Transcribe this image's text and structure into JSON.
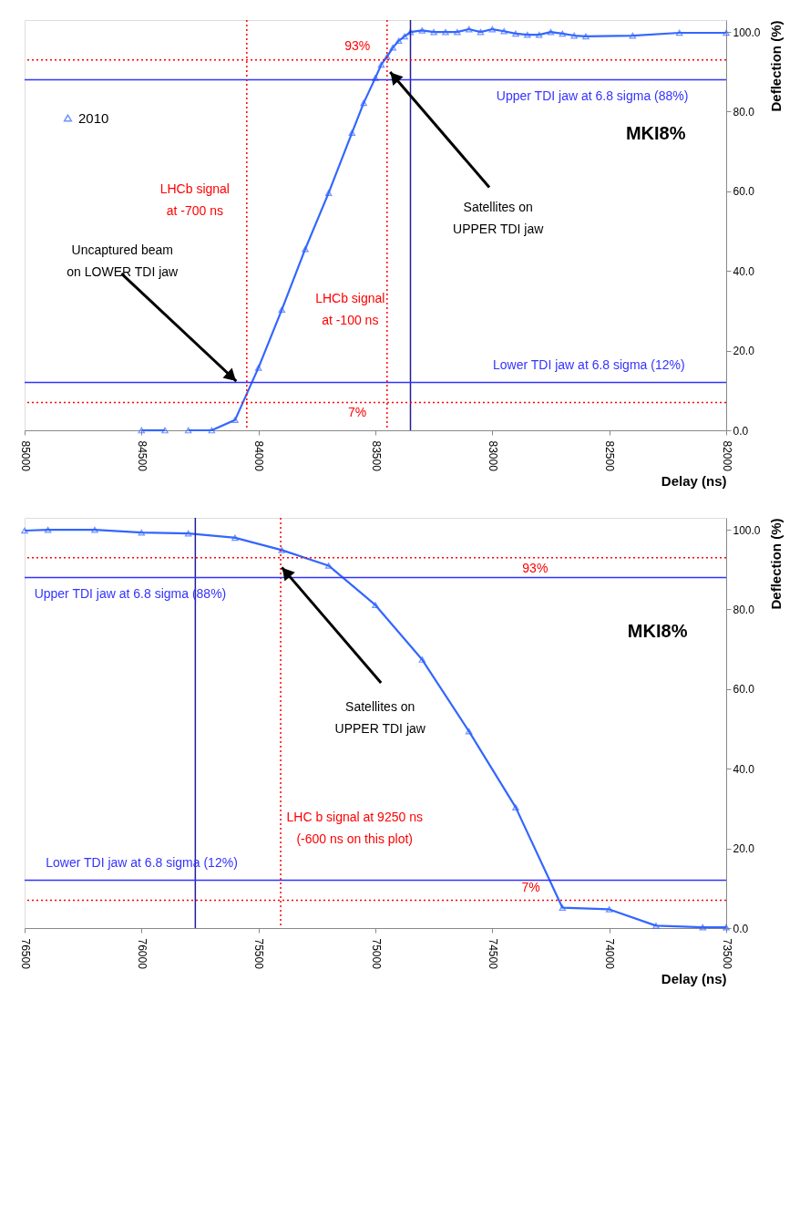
{
  "chart_data": [
    {
      "type": "line",
      "xlabel": "Delay (ns)",
      "ylabel": "Deflection (%)",
      "xlim": [
        85000,
        82000
      ],
      "xticks": [
        85000,
        84500,
        84000,
        83500,
        83000,
        82500,
        82000
      ],
      "ylim": [
        0,
        103
      ],
      "yticks": [
        {
          "value": 0,
          "label": "0.0"
        },
        {
          "value": 20,
          "label": "20.0"
        },
        {
          "value": 40,
          "label": "40.0"
        },
        {
          "value": 60,
          "label": "60.0"
        },
        {
          "value": 80,
          "label": "80.0"
        },
        {
          "value": 100,
          "label": "100.0"
        }
      ],
      "marker": "triangle",
      "line_style": "solid",
      "legend": "top left",
      "series": [
        {
          "name": "2010",
          "color": "#3366ff",
          "x": [
            84500,
            84400,
            84350,
            84300,
            84200,
            84100,
            84000,
            83900,
            83800,
            83700,
            83600,
            83550,
            83500,
            83475,
            83450,
            83425,
            83400,
            83375,
            83350,
            83300,
            83250,
            83200,
            83150,
            83100,
            83050,
            83000,
            82950,
            82900,
            82850,
            82800,
            82750,
            82700,
            82650,
            82600,
            82400,
            82200,
            82000
          ],
          "values": [
            0,
            0,
            null,
            0,
            0,
            2.6,
            15.7,
            30.3,
            45.5,
            59.6,
            74.7,
            82.2,
            88.5,
            91.8,
            93.8,
            96.1,
            97.8,
            98.9,
            100.0,
            100.4,
            100.0,
            100.0,
            100.0,
            100.7,
            100.0,
            100.7,
            100.2,
            99.6,
            99.3,
            99.3,
            100.0,
            99.6,
            99.1,
            98.9,
            99.1,
            99.8,
            99.8
          ]
        }
      ],
      "ref_lines": [
        {
          "axis": "x",
          "value": 84050,
          "label": "LHCb signal\nat -700 ns",
          "color": "#ff0000",
          "line_style": "dotted"
        },
        {
          "axis": "x",
          "value": 83450,
          "label": "LHCb signal\nat -100 ns",
          "color": "#ff0000",
          "line_style": "dotted"
        },
        {
          "axis": "x",
          "value": 83350,
          "color": "#1f1f99",
          "line_style": "solid"
        },
        {
          "axis": "y",
          "value": 93,
          "label": "93%",
          "color": "#ff0000",
          "line_style": "dotted"
        },
        {
          "axis": "y",
          "value": 7,
          "label": "7%",
          "color": "#ff0000",
          "line_style": "dotted"
        },
        {
          "axis": "y",
          "value": 88,
          "label": "Upper TDI jaw at 6.8 sigma (88%)",
          "color": "#3333ff",
          "line_style": "solid"
        },
        {
          "axis": "y",
          "value": 12,
          "label": "Lower TDI jaw at 6.8 sigma (12%)",
          "color": "#3333ff",
          "line_style": "solid"
        }
      ],
      "annotations": [
        {
          "text": "Uncaptured beam\non LOWER TDI jaw",
          "x": 84089,
          "y": 12
        },
        {
          "text": "Satellites on\nUPPER TDI jaw",
          "x": 83442,
          "y": 90.3
        },
        "MKI8%"
      ]
    },
    {
      "type": "line",
      "xlabel": "Delay (ns)",
      "ylabel": "Deflection (%)",
      "xlim": [
        76500,
        73500
      ],
      "xticks": [
        76500,
        76000,
        75500,
        75000,
        74500,
        74000,
        73500
      ],
      "ylim": [
        0,
        103
      ],
      "yticks": [
        {
          "value": 0,
          "label": "0.0"
        },
        {
          "value": 20,
          "label": "20.0"
        },
        {
          "value": 40,
          "label": "40.0"
        },
        {
          "value": 60,
          "label": "60.0"
        },
        {
          "value": 80,
          "label": "80.0"
        },
        {
          "value": 100,
          "label": "100.0"
        }
      ],
      "marker": "triangle",
      "line_style": "solid",
      "series": [
        {
          "color": "#3366ff",
          "x": [
            76500,
            76400,
            76200,
            76000,
            75800,
            75600,
            75400,
            75200,
            75000,
            74800,
            74600,
            74400,
            74200,
            74000,
            73800,
            73600,
            73500
          ],
          "values": [
            99.8,
            100.0,
            100.0,
            99.3,
            99.1,
            98.0,
            94.9,
            91.0,
            81.1,
            67.4,
            49.4,
            30.3,
            5.1,
            4.7,
            0.6,
            0.2,
            0.2
          ]
        }
      ],
      "ref_lines": [
        {
          "axis": "x",
          "value": 75770,
          "color": "#1f1f99",
          "line_style": "solid"
        },
        {
          "axis": "x",
          "value": 75405,
          "label": "LHC b signal at 9250 ns\n(-600 ns on this plot)",
          "color": "#ff0000",
          "line_style": "dotted"
        },
        {
          "axis": "y",
          "value": 93,
          "label": "93%",
          "color": "#ff0000",
          "line_style": "dotted"
        },
        {
          "axis": "y",
          "value": 7,
          "label": "7%",
          "color": "#ff0000",
          "line_style": "dotted"
        },
        {
          "axis": "y",
          "value": 88,
          "label": "Upper TDI jaw at 6.8 sigma (88%)",
          "color": "#3333ff",
          "line_style": "solid"
        },
        {
          "axis": "y",
          "value": 12,
          "label": "Lower TDI jaw at 6.8 sigma (12%)",
          "color": "#3333ff",
          "line_style": "solid"
        }
      ],
      "annotations": [
        {
          "text": "Satellites on\nUPPER TDI jaw",
          "x": 75405,
          "y": 90.9
        },
        "MKI8%"
      ]
    }
  ]
}
